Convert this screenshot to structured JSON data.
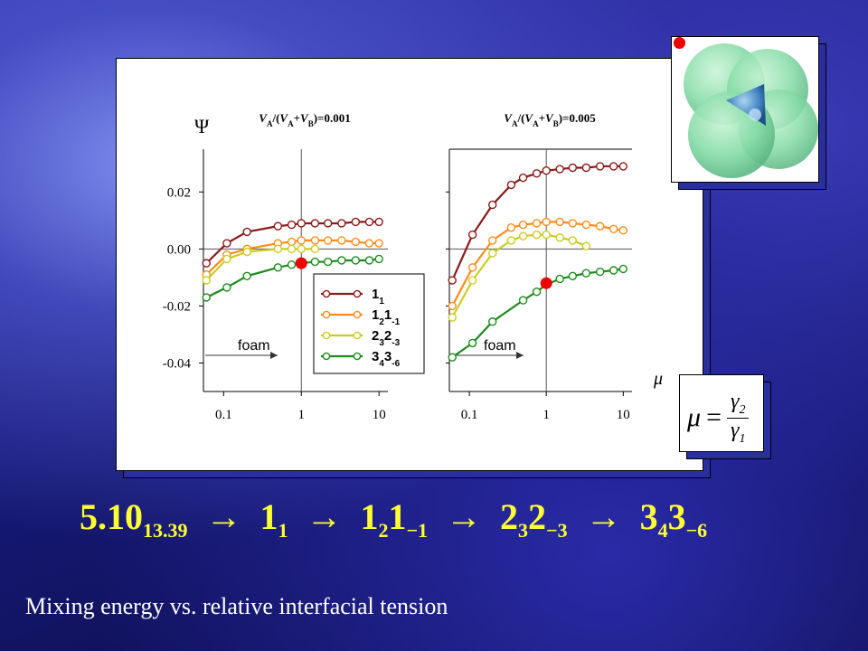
{
  "chart_data": [
    {
      "type": "line",
      "title": "VA/(VA+VB)=0.001",
      "title_parts": {
        "v1": "V",
        "a1": "A",
        "mid": "/(",
        "v2": "V",
        "a2": "A",
        "plus": "+",
        "v3": "V",
        "b": "B",
        "end": ")=0.001"
      },
      "ylabel": "Ψ",
      "xscale": "log",
      "xlim": [
        0.055,
        13
      ],
      "ylim": [
        -0.05,
        0.035
      ],
      "xticks": [
        "0.1",
        "1",
        "10"
      ],
      "yticks": [
        "0.02",
        "0.00",
        "-0.02",
        "-0.04"
      ],
      "yticks_values": [
        0.02,
        0.0,
        -0.02,
        -0.04
      ],
      "annotation": "foam",
      "series": [
        {
          "name": "1_1",
          "color": "#8b1a1a",
          "x": [
            0.06,
            0.11,
            0.2,
            0.5,
            0.75,
            1.0,
            1.5,
            2.2,
            3.3,
            5,
            7.5,
            10
          ],
          "y": [
            -0.005,
            0.002,
            0.006,
            0.008,
            0.0085,
            0.009,
            0.009,
            0.009,
            0.009,
            0.0095,
            0.0095,
            0.0095
          ]
        },
        {
          "name": "1_21_-1",
          "color": "#ff8c1a",
          "x": [
            0.06,
            0.11,
            0.2,
            0.5,
            0.75,
            1.0,
            1.5,
            2.2,
            3.3,
            5,
            7.5,
            10
          ],
          "y": [
            -0.009,
            -0.002,
            0.0,
            0.002,
            0.0025,
            0.003,
            0.003,
            0.003,
            0.003,
            0.0025,
            0.002,
            0.002
          ]
        },
        {
          "name": "2_32_-3",
          "color": "#cccc22",
          "x": [
            0.06,
            0.11,
            0.2,
            0.5,
            0.75,
            1.0,
            1.5
          ],
          "y": [
            -0.011,
            -0.0035,
            -0.001,
            0.0,
            0.0,
            0.0,
            0.0
          ]
        },
        {
          "name": "3_43_-6",
          "color": "#1a8c1a",
          "x": [
            0.06,
            0.11,
            0.2,
            0.5,
            0.75,
            1.0,
            1.5,
            2.2,
            3.3,
            5,
            7.5,
            10
          ],
          "y": [
            -0.017,
            -0.0135,
            -0.0095,
            -0.0065,
            -0.0055,
            -0.005,
            -0.0045,
            -0.0045,
            -0.004,
            -0.004,
            -0.004,
            -0.0035
          ]
        }
      ],
      "marker_point": {
        "x": 1.0,
        "y": -0.005
      },
      "legend": {
        "placement": "lower-right",
        "entries": [
          {
            "base": "1",
            "sub1": "1",
            "mid": "",
            "sub2": ""
          },
          {
            "base": "1",
            "sub1": "2",
            "mid": "1",
            "sub2": "-1"
          },
          {
            "base": "2",
            "sub1": "3",
            "mid": "2",
            "sub2": "-3"
          },
          {
            "base": "3",
            "sub1": "4",
            "mid": "3",
            "sub2": "-6"
          }
        ]
      }
    },
    {
      "type": "line",
      "title": "VA/(VA+VB)=0.005",
      "title_parts": {
        "v1": "V",
        "a1": "A",
        "mid": "/(",
        "v2": "V",
        "a2": "A",
        "plus": "+",
        "v3": "V",
        "b": "B",
        "end": ")=0.005"
      },
      "xscale": "log",
      "xlim": [
        0.055,
        13
      ],
      "ylim": [
        -0.05,
        0.035
      ],
      "xticks": [
        "0.1",
        "1",
        "10"
      ],
      "xlabel": "μ",
      "annotation": "foam",
      "series": [
        {
          "name": "1_1",
          "color": "#8b1a1a",
          "x": [
            0.06,
            0.11,
            0.2,
            0.35,
            0.5,
            0.75,
            1.0,
            1.5,
            2.2,
            3.3,
            5,
            7.5,
            10
          ],
          "y": [
            -0.011,
            0.005,
            0.0155,
            0.0225,
            0.025,
            0.0265,
            0.0275,
            0.028,
            0.0285,
            0.0285,
            0.029,
            0.029,
            0.029
          ]
        },
        {
          "name": "1_21_-1",
          "color": "#ff8c1a",
          "x": [
            0.06,
            0.11,
            0.2,
            0.35,
            0.5,
            0.75,
            1.0,
            1.5,
            2.2,
            3.3,
            5,
            7.5,
            10
          ],
          "y": [
            -0.02,
            -0.0065,
            0.003,
            0.0075,
            0.0085,
            0.009,
            0.0095,
            0.0095,
            0.009,
            0.0085,
            0.008,
            0.007,
            0.0065
          ]
        },
        {
          "name": "2_32_-3",
          "color": "#cccc22",
          "x": [
            0.06,
            0.11,
            0.2,
            0.35,
            0.5,
            0.75,
            1.0,
            1.5,
            2.2,
            3.3
          ],
          "y": [
            -0.024,
            -0.011,
            -0.0015,
            0.003,
            0.0045,
            0.005,
            0.005,
            0.004,
            0.003,
            0.001
          ]
        },
        {
          "name": "3_43_-6",
          "color": "#1a8c1a",
          "x": [
            0.06,
            0.11,
            0.2,
            0.5,
            0.75,
            1.0,
            1.5,
            2.2,
            3.3,
            5,
            7.5,
            10
          ],
          "y": [
            -0.038,
            -0.033,
            -0.0255,
            -0.018,
            -0.015,
            -0.0125,
            -0.0105,
            -0.0095,
            -0.0085,
            -0.008,
            -0.0075,
            -0.007
          ]
        }
      ],
      "marker_point": {
        "x": 1.0,
        "y": -0.012
      }
    }
  ],
  "mu_formula": {
    "lhs": "μ",
    "eq": "=",
    "num_sym": "γ",
    "num_sub": "2",
    "den_sym": "γ",
    "den_sub": "1"
  },
  "sequence": {
    "p1": "5.10",
    "p1_sub": "13.39",
    "arrow": "→",
    "p2": "1",
    "p2_sub": "1",
    "p3": "1",
    "p3_sub": "2",
    "p3b": "1",
    "p3b_sub": "−1",
    "p4": "2",
    "p4_sub": "3",
    "p4b": "2",
    "p4b_sub": "−3",
    "p5": "3",
    "p5_sub": "4",
    "p5b": "3",
    "p5b_sub": "−6"
  },
  "caption": "Mixing energy vs. relative interfacial tension",
  "colors": {
    "highlight": "#ffff33",
    "marker": "#ee0000",
    "sphere": "#7fd9a0",
    "core": "#3a7ab8"
  }
}
